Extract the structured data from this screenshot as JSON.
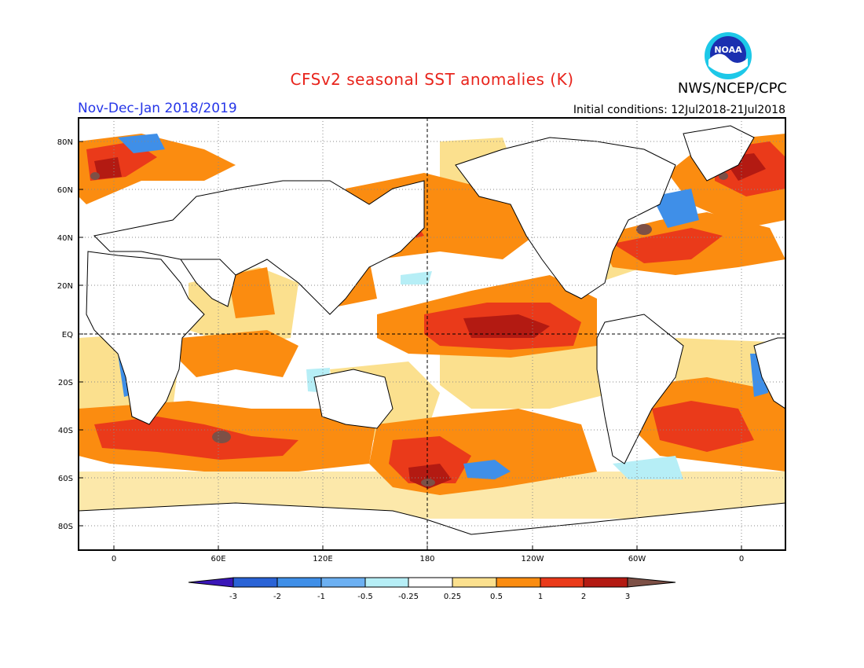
{
  "header": {
    "title": "CFSv2 seasonal SST anomalies (K)",
    "agency": "NWS/NCEP/CPC",
    "logo_text": "NOAA",
    "period": "Nov-Dec-Jan 2018/2019",
    "initial_conditions": "Initial conditions: 12Jul2018-21Jul2018"
  },
  "map": {
    "projection": "cylindrical equidistant",
    "lat_labels": [
      "80N",
      "60N",
      "40N",
      "20N",
      "EQ",
      "20S",
      "40S",
      "60S",
      "80S"
    ],
    "lon_labels": [
      "0",
      "60E",
      "120E",
      "180",
      "120W",
      "60W",
      "0"
    ],
    "reference_lines": [
      "equator",
      "180 meridian"
    ],
    "land_color": "#ffffff"
  },
  "colorbar": {
    "labels": [
      "-3",
      "-2",
      "-1",
      "-0.5",
      "-0.25",
      "0.25",
      "0.5",
      "1",
      "2",
      "3"
    ],
    "colors": [
      "#3a16b8",
      "#2a63d6",
      "#3f8fe8",
      "#6cb0f2",
      "#b6eef6",
      "#ffffff",
      "#fbe08e",
      "#fb8c10",
      "#ea3a1a",
      "#b31a12",
      "#7d5046"
    ]
  }
}
